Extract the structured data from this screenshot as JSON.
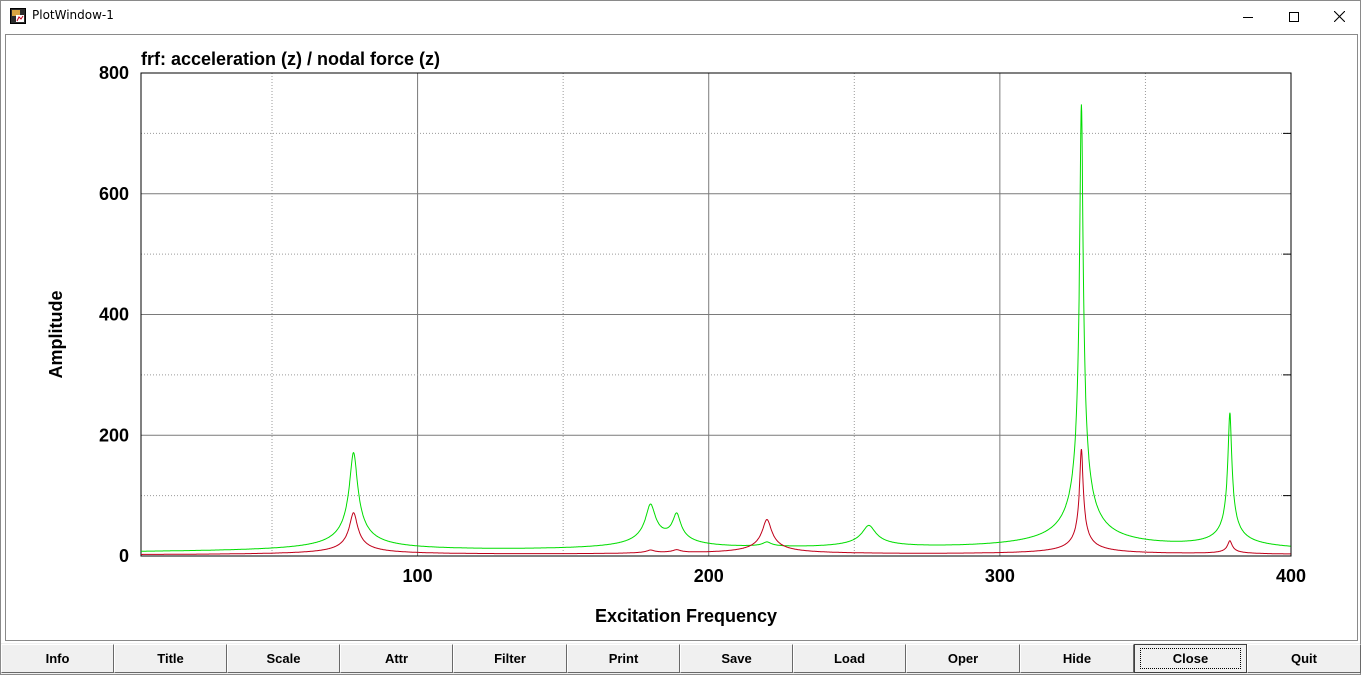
{
  "window": {
    "title": "PlotWindow-1",
    "icon": "plot-app-icon",
    "controls": [
      "minimize-icon",
      "maximize-icon",
      "close-icon"
    ]
  },
  "plot": {
    "title": "frf: acceleration (z) / nodal force (z)",
    "background": "#ffffff"
  },
  "chart_data": {
    "type": "line",
    "title": "frf: acceleration (z) / nodal force (z)",
    "xlabel": "Excitation Frequency",
    "ylabel": "Amplitude",
    "xlim": [
      5,
      400
    ],
    "ylim": [
      0,
      800
    ],
    "x_ticks": [
      100,
      200,
      300,
      400
    ],
    "x_tick_labels": [
      "100",
      "200",
      "300",
      "400"
    ],
    "y_ticks": [
      0,
      200,
      400,
      600,
      800
    ],
    "y_tick_labels": [
      "0",
      "200",
      "400",
      "600",
      "800"
    ],
    "grid": true,
    "legend": "none",
    "series": [
      {
        "color": "#00dd00",
        "peaks": [
          {
            "x": 78,
            "y": 165,
            "w": 1.3
          },
          {
            "x": 180,
            "y": 70,
            "w": 1.6
          },
          {
            "x": 189,
            "y": 50,
            "w": 1.3
          },
          {
            "x": 220,
            "y": 8,
            "w": 1.3
          },
          {
            "x": 255,
            "y": 38,
            "w": 2.2
          },
          {
            "x": 328,
            "y": 740,
            "w": 0.55
          },
          {
            "x": 379,
            "y": 225,
            "w": 0.6
          }
        ],
        "baseline": 2
      },
      {
        "color": "#c0001a",
        "peaks": [
          {
            "x": 78,
            "y": 70,
            "w": 1.3
          },
          {
            "x": 180,
            "y": 5,
            "w": 1.2
          },
          {
            "x": 189,
            "y": 5,
            "w": 1.2
          },
          {
            "x": 220,
            "y": 58,
            "w": 1.5
          },
          {
            "x": 328,
            "y": 175,
            "w": 0.55
          },
          {
            "x": 379,
            "y": 22,
            "w": 0.7
          }
        ],
        "baseline": 0.5
      }
    ]
  },
  "buttons": [
    {
      "label": "Info"
    },
    {
      "label": "Title"
    },
    {
      "label": "Scale"
    },
    {
      "label": "Attr"
    },
    {
      "label": "Filter"
    },
    {
      "label": "Print"
    },
    {
      "label": "Save"
    },
    {
      "label": "Load"
    },
    {
      "label": "Oper"
    },
    {
      "label": "Hide"
    },
    {
      "label": "Close",
      "focused": true
    },
    {
      "label": "Quit"
    }
  ]
}
